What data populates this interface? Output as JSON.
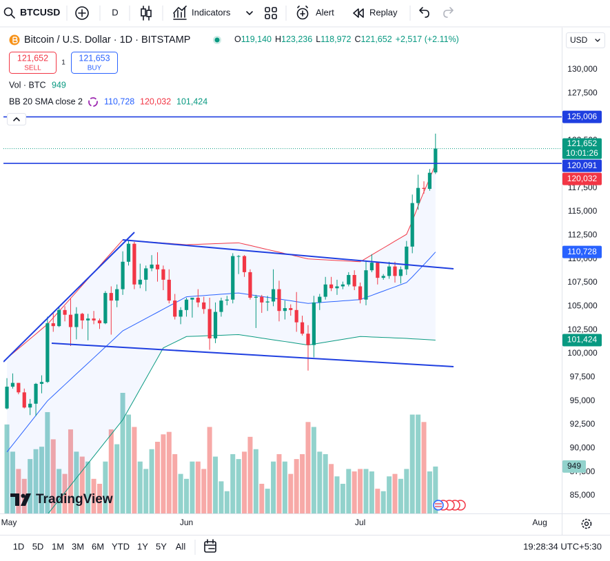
{
  "toolbar": {
    "symbol": "BTCUSD",
    "interval": "D",
    "indicators": "Indicators",
    "alert": "Alert",
    "replay": "Replay"
  },
  "legend": {
    "title": "Bitcoin / U.S. Dollar · 1D · BITSTAMP",
    "ohlc": [
      {
        "key": "O",
        "value": "119,140"
      },
      {
        "key": "H",
        "value": "123,236"
      },
      {
        "key": "L",
        "value": "118,972"
      },
      {
        "key": "C",
        "value": "121,652"
      }
    ],
    "change": "+2,517 (+2.11%)",
    "sell": {
      "price": "121,652",
      "label": "SELL"
    },
    "spread": "1",
    "buy": {
      "price": "121,653",
      "label": "BUY"
    },
    "volume_label": "Vol · BTC",
    "bb_label": "BB 20 SMA close 2"
  },
  "currency": "USD",
  "watermark": "TradingView",
  "timeframes": [
    "1D",
    "5D",
    "1M",
    "3M",
    "6M",
    "YTD",
    "1Y",
    "5Y",
    "All"
  ],
  "clock": "19:28:34 UTC+5:30",
  "chart_data": {
    "type": "candlestick",
    "xlim": [
      -0.6,
      95.8
    ],
    "xticks": [
      {
        "value": 0,
        "label": "May"
      },
      {
        "value": 31,
        "label": "Jun"
      },
      {
        "value": 61,
        "label": "Jul"
      },
      {
        "value": 92,
        "label": "Aug"
      }
    ],
    "ylim": [
      83107,
      134078
    ],
    "yticks": [
      {
        "value": 85000,
        "label": "85,000"
      },
      {
        "value": 87500,
        "label": "87,500"
      },
      {
        "value": 90000,
        "label": "90,000"
      },
      {
        "value": 92500,
        "label": "92,500"
      },
      {
        "value": 95000,
        "label": "95,000"
      },
      {
        "value": 97500,
        "label": "97,500"
      },
      {
        "value": 100000,
        "label": "100,000"
      },
      {
        "value": 102500,
        "label": "102,500"
      },
      {
        "value": 105000,
        "label": "105,000"
      },
      {
        "value": 107500,
        "label": "107,500"
      },
      {
        "value": 110000,
        "label": "110,000"
      },
      {
        "value": 112500,
        "label": "112,500"
      },
      {
        "value": 115000,
        "label": "115,000"
      },
      {
        "value": 117500,
        "label": "117,500"
      },
      {
        "value": 120000,
        "label": "120,000"
      },
      {
        "value": 122500,
        "label": "122,500"
      },
      {
        "value": 125000,
        "label": "125,000"
      },
      {
        "value": 127500,
        "label": "127,500"
      },
      {
        "value": 130000,
        "label": "130,000"
      }
    ],
    "grid": false,
    "up_color": "#089981",
    "down_color": "#f23645",
    "volume_up_color": "#92d2cc",
    "volume_down_color": "#f7a9a7",
    "open": [
      94200,
      96500,
      96900,
      95900,
      94300,
      94700,
      96800,
      97000,
      103200,
      102900,
      104600,
      104100,
      102800,
      104200,
      103500,
      103700,
      103500,
      103200,
      106400,
      105600,
      106800,
      109700,
      111600,
      107300,
      107800,
      109000,
      109400,
      108900,
      107800,
      105600,
      103900,
      104600,
      105700,
      105900,
      105400,
      104700,
      101600,
      104400,
      105600,
      105700,
      110300,
      110300,
      108600,
      105900,
      106000,
      105400,
      105500,
      106800,
      104500,
      104800,
      104600,
      103300,
      102100,
      100900,
      105400,
      106000,
      107300,
      106900,
      107100,
      107300,
      108300,
      107100,
      105700,
      108800,
      109600,
      108000,
      108200,
      109200,
      108200,
      108900,
      111300,
      115900,
      117500,
      117400,
      119140
    ],
    "high": [
      97400,
      97900,
      96900,
      96300,
      95200,
      96900,
      97700,
      103900,
      104300,
      104900,
      105000,
      105800,
      104900,
      104300,
      104200,
      104500,
      103700,
      106600,
      107100,
      107300,
      110800,
      111900,
      111800,
      109500,
      109300,
      110400,
      110700,
      109300,
      108900,
      106300,
      104900,
      105900,
      105900,
      106800,
      106000,
      105900,
      105400,
      105900,
      106100,
      110600,
      110400,
      110400,
      108900,
      106200,
      106200,
      106100,
      108900,
      107700,
      105600,
      105200,
      106500,
      104000,
      103000,
      106100,
      106300,
      108100,
      108100,
      107800,
      107600,
      108600,
      108800,
      107500,
      109800,
      110500,
      109700,
      108400,
      109700,
      109700,
      109200,
      111900,
      116800,
      118900,
      118200,
      119500,
      123236
    ],
    "low": [
      94100,
      96300,
      95700,
      94200,
      93500,
      93400,
      95800,
      96900,
      102300,
      102800,
      103400,
      100800,
      101500,
      102600,
      101400,
      103100,
      102600,
      103100,
      102000,
      104900,
      106200,
      109300,
      106800,
      106900,
      106600,
      108700,
      107600,
      106700,
      105300,
      103600,
      103100,
      103900,
      103800,
      104900,
      104200,
      100400,
      101100,
      103900,
      105100,
      105300,
      108400,
      108100,
      105700,
      102700,
      104300,
      104500,
      105000,
      103400,
      103600,
      104000,
      102300,
      101900,
      98200,
      99600,
      104600,
      105700,
      106600,
      106200,
      106800,
      107100,
      106700,
      105300,
      105100,
      108600,
      107300,
      107800,
      107900,
      107500,
      107400,
      108300,
      110600,
      115200,
      116900,
      117200,
      118972
    ],
    "close": [
      96500,
      96900,
      95900,
      94300,
      94700,
      96800,
      97000,
      103200,
      102900,
      104600,
      104100,
      102800,
      104200,
      103500,
      103700,
      103500,
      103200,
      106400,
      105600,
      106800,
      109700,
      111600,
      107300,
      107800,
      109000,
      109400,
      108900,
      107800,
      105600,
      103900,
      104600,
      105700,
      105900,
      105400,
      104700,
      101600,
      104400,
      105600,
      105700,
      110300,
      110300,
      108600,
      105900,
      106000,
      105400,
      105500,
      106800,
      104500,
      104800,
      104600,
      103300,
      102100,
      100900,
      105400,
      106000,
      107300,
      106900,
      107100,
      107300,
      108300,
      107100,
      105700,
      108800,
      109600,
      108000,
      108200,
      109200,
      108200,
      108900,
      111300,
      115900,
      117500,
      117400,
      119100,
      121652
    ],
    "volume": [
      1800,
      1250,
      900,
      700,
      1100,
      1300,
      1350,
      2050,
      1500,
      900,
      800,
      1700,
      1250,
      1150,
      1050,
      700,
      600,
      1050,
      1700,
      1400,
      2440,
      2000,
      1750,
      1050,
      900,
      1300,
      1450,
      1600,
      1650,
      1200,
      800,
      700,
      1050,
      1050,
      900,
      1750,
      1150,
      650,
      450,
      1200,
      1100,
      1250,
      1550,
      1300,
      600,
      500,
      1050,
      1200,
      1050,
      800,
      1100,
      1200,
      1850,
      1750,
      1250,
      1200,
      1000,
      750,
      600,
      900,
      850,
      900,
      900,
      850,
      500,
      450,
      750,
      800,
      700,
      900,
      2000,
      2000,
      1850,
      850,
      949
    ],
    "bb_basis": {
      "color": "#2962ff",
      "values": [
        89600,
        90370,
        91140,
        91910,
        92690,
        93460,
        94230,
        95000,
        95570,
        96140,
        96710,
        97280,
        97850,
        98420,
        98980,
        99550,
        100120,
        100690,
        101260,
        101830,
        102400,
        102730,
        103050,
        103380,
        103710,
        104040,
        104360,
        104690,
        105020,
        105350,
        105670,
        106000,
        106040,
        106090,
        106130,
        106180,
        106220,
        106270,
        106310,
        106360,
        106400,
        106310,
        106220,
        106130,
        106030,
        105940,
        105850,
        105760,
        105670,
        105580,
        105480,
        105390,
        105300,
        105340,
        105390,
        105430,
        105480,
        105520,
        105570,
        105610,
        105660,
        105700,
        105930,
        106150,
        106380,
        106600,
        106830,
        107050,
        107280,
        107500,
        108100,
        108750,
        109400,
        110050,
        110728
      ]
    },
    "bb_upper": {
      "color": "#f23645",
      "values": [
        99500,
        100010,
        100530,
        101040,
        101560,
        102070,
        102590,
        103100,
        103780,
        104470,
        105150,
        105840,
        106520,
        107210,
        107890,
        108580,
        109260,
        109950,
        110630,
        111320,
        112000,
        111950,
        111910,
        111860,
        111820,
        111770,
        111730,
        111680,
        111640,
        111590,
        111550,
        111500,
        111520,
        111540,
        111570,
        111590,
        111610,
        111630,
        111660,
        111680,
        111700,
        111560,
        111420,
        111280,
        111130,
        110990,
        110850,
        110710,
        110570,
        110430,
        110280,
        110140,
        110000,
        109970,
        109930,
        109900,
        109870,
        109830,
        109800,
        109770,
        109730,
        109700,
        110060,
        110430,
        110790,
        111150,
        111510,
        111880,
        112240,
        112600,
        114000,
        115600,
        117100,
        118500,
        120032
      ]
    },
    "bb_lower": {
      "color": "#089981",
      "values": [
        78000,
        78710,
        79430,
        80140,
        80860,
        81570,
        82290,
        83000,
        83770,
        84540,
        85310,
        86080,
        86850,
        87620,
        88380,
        89150,
        89920,
        90690,
        91460,
        92230,
        93000,
        94090,
        95170,
        96260,
        97340,
        98430,
        99510,
        100600,
        100900,
        101200,
        101500,
        101800,
        101820,
        101840,
        101870,
        101890,
        101910,
        101930,
        101960,
        101980,
        102000,
        101910,
        101820,
        101730,
        101630,
        101540,
        101450,
        101360,
        101270,
        101180,
        101080,
        100990,
        100900,
        101000,
        101100,
        101200,
        101300,
        101400,
        101500,
        101600,
        101700,
        101800,
        101780,
        101750,
        101730,
        101700,
        101680,
        101650,
        101630,
        101600,
        101560,
        101530,
        101490,
        101460,
        101424
      ]
    },
    "bb_fill": "rgba(41,98,255,0.05)",
    "horizontal_lines": [
      {
        "value": 125006,
        "label": "125,006"
      },
      {
        "value": 120091,
        "label": "120,091"
      }
    ],
    "horizontal_line_color": "#1f3fe0",
    "price_labels": [
      {
        "value": 121652,
        "label": "121,652",
        "sublabel": "10:01:26",
        "color": "#089981"
      },
      {
        "value": 120032,
        "label": "120,032",
        "color": "#f23645"
      },
      {
        "value": 110728,
        "label": "110,728",
        "color": "#2962ff"
      },
      {
        "value": 101424,
        "label": "101,424",
        "color": "#089981"
      }
    ]
  }
}
